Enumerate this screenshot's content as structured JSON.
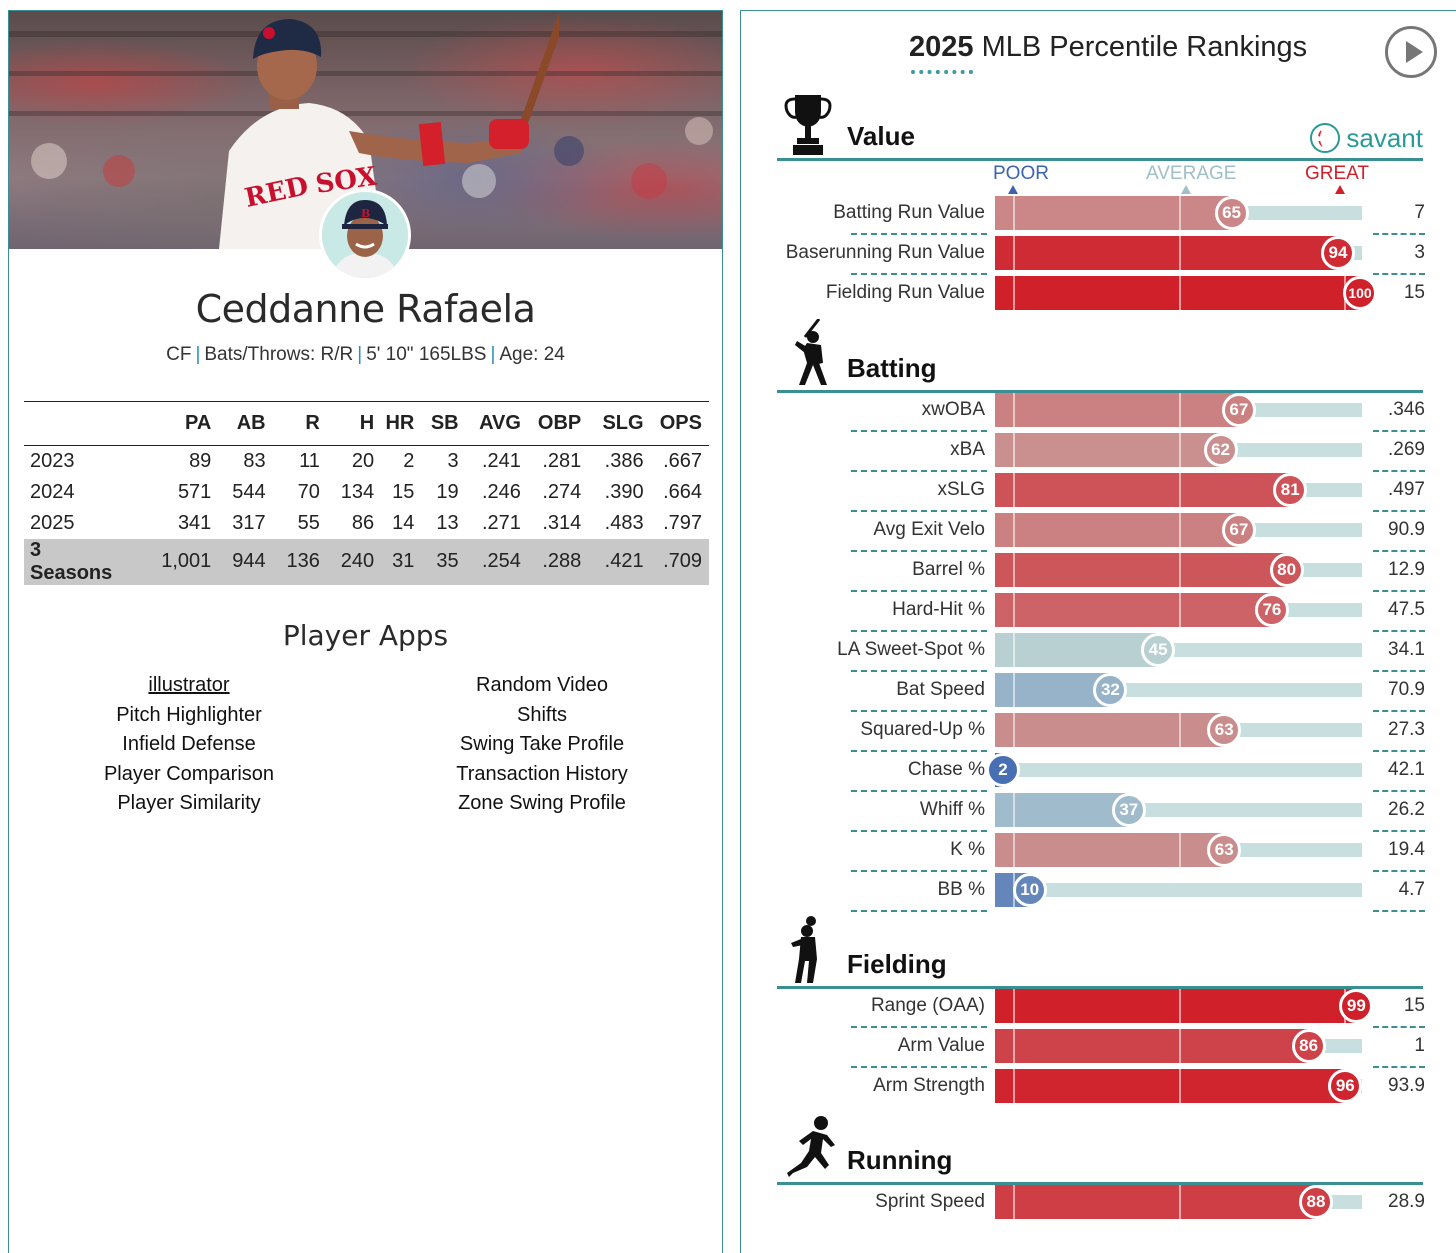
{
  "player": {
    "name": "Ceddanne Rafaela",
    "position": "CF",
    "bats_throws": "Bats/Throws: R/R",
    "height_weight": "5' 10\" 165LBS",
    "age": "Age: 24",
    "separator": "|"
  },
  "stats": {
    "headers": [
      "",
      "PA",
      "AB",
      "R",
      "H",
      "HR",
      "SB",
      "AVG",
      "OBP",
      "SLG",
      "OPS"
    ],
    "rows": [
      [
        "2023",
        "89",
        "83",
        "11",
        "20",
        "2",
        "3",
        ".241",
        ".281",
        ".386",
        ".667"
      ],
      [
        "2024",
        "571",
        "544",
        "70",
        "134",
        "15",
        "19",
        ".246",
        ".274",
        ".390",
        ".664"
      ],
      [
        "2025",
        "341",
        "317",
        "55",
        "86",
        "14",
        "13",
        ".271",
        ".314",
        ".483",
        ".797"
      ],
      [
        "3 Seasons",
        "1,001",
        "944",
        "136",
        "240",
        "31",
        "35",
        ".254",
        ".288",
        ".421",
        ".709"
      ]
    ]
  },
  "apps": {
    "title": "Player Apps",
    "left": [
      "illustrator",
      "Pitch Highlighter",
      "Infield Defense",
      "Player Comparison",
      "Player Similarity"
    ],
    "right": [
      "Random Video",
      "Shifts",
      "Swing Take Profile",
      "Transaction History",
      "Zone Swing Profile"
    ]
  },
  "rankings": {
    "title_year": "2025",
    "title_rest": "MLB Percentile Rankings",
    "brand": "savant",
    "scale": {
      "poor": "POOR",
      "average": "AVERAGE",
      "great": "GREAT"
    },
    "colors": {
      "poor": "#3b63b0",
      "average": "#9fb8ba",
      "great": "#d0212b",
      "teal": "#3a8f93"
    },
    "sections": [
      {
        "title": "Value",
        "icon": "trophy-icon",
        "rows": [
          {
            "label": "Batting Run Value",
            "percentile": 65,
            "value": "7"
          },
          {
            "label": "Baserunning Run Value",
            "percentile": 94,
            "value": "3"
          },
          {
            "label": "Fielding Run Value",
            "percentile": 100,
            "value": "15"
          }
        ]
      },
      {
        "title": "Batting",
        "icon": "batter-icon",
        "rows": [
          {
            "label": "xwOBA",
            "percentile": 67,
            "value": ".346"
          },
          {
            "label": "xBA",
            "percentile": 62,
            "value": ".269"
          },
          {
            "label": "xSLG",
            "percentile": 81,
            "value": ".497"
          },
          {
            "label": "Avg Exit Velo",
            "percentile": 67,
            "value": "90.9"
          },
          {
            "label": "Barrel %",
            "percentile": 80,
            "value": "12.9"
          },
          {
            "label": "Hard-Hit %",
            "percentile": 76,
            "value": "47.5"
          },
          {
            "label": "LA Sweet-Spot %",
            "percentile": 45,
            "value": "34.1"
          },
          {
            "label": "Bat Speed",
            "percentile": 32,
            "value": "70.9"
          },
          {
            "label": "Squared-Up %",
            "percentile": 63,
            "value": "27.3"
          },
          {
            "label": "Chase %",
            "percentile": 2,
            "value": "42.1"
          },
          {
            "label": "Whiff %",
            "percentile": 37,
            "value": "26.2"
          },
          {
            "label": "K %",
            "percentile": 63,
            "value": "19.4"
          },
          {
            "label": "BB %",
            "percentile": 10,
            "value": "4.7"
          }
        ]
      },
      {
        "title": "Fielding",
        "icon": "fielder-icon",
        "rows": [
          {
            "label": "Range (OAA)",
            "percentile": 99,
            "value": "15"
          },
          {
            "label": "Arm Value",
            "percentile": 86,
            "value": "1"
          },
          {
            "label": "Arm Strength",
            "percentile": 96,
            "value": "93.9"
          }
        ]
      },
      {
        "title": "Running",
        "icon": "runner-icon",
        "rows": [
          {
            "label": "Sprint Speed",
            "percentile": 88,
            "value": "28.9"
          }
        ]
      }
    ]
  }
}
